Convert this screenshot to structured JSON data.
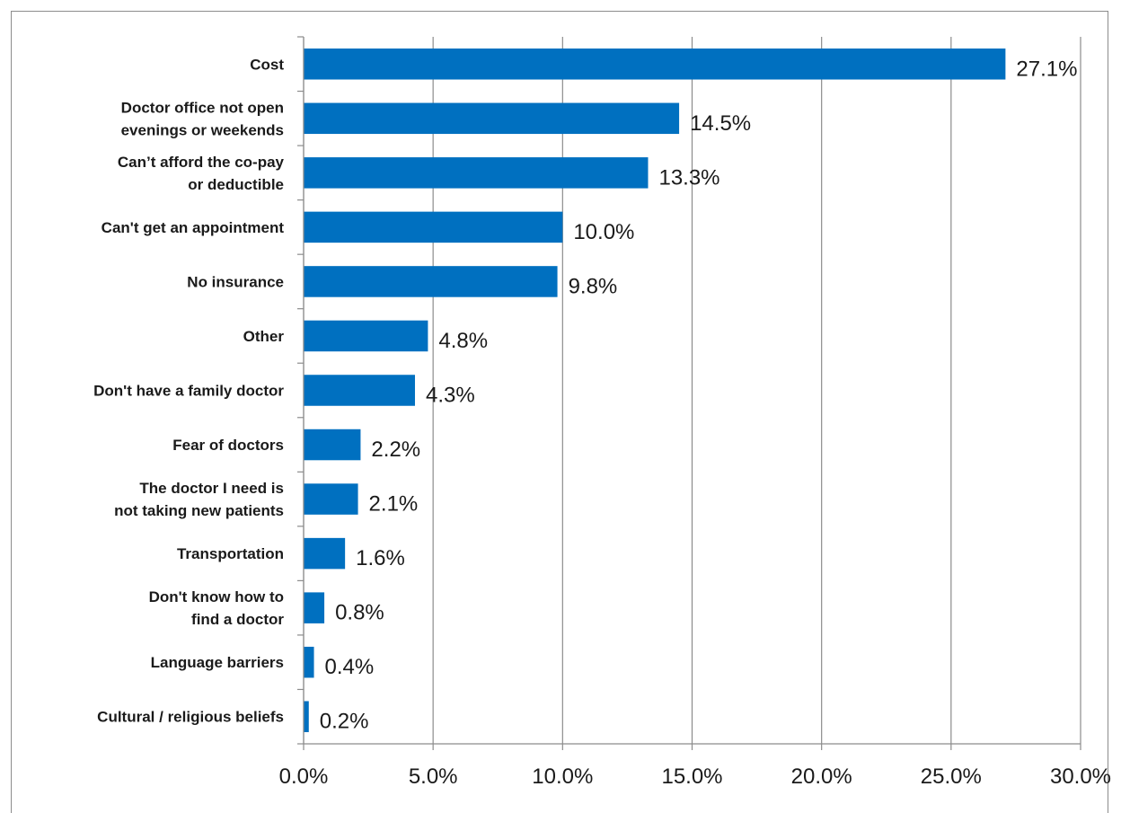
{
  "chart_data": {
    "type": "bar",
    "orientation": "horizontal",
    "title": "",
    "xlabel": "",
    "ylabel": "",
    "categories": [
      [
        "Cost"
      ],
      [
        "Doctor office not open",
        "evenings or weekends"
      ],
      [
        "Can’t afford the co-pay",
        "or deductible"
      ],
      [
        "Can't get an appointment"
      ],
      [
        "No insurance"
      ],
      [
        "Other"
      ],
      [
        "Don't have a family doctor"
      ],
      [
        "Fear of doctors"
      ],
      [
        "The doctor I need is",
        "not taking new patients"
      ],
      [
        "Transportation"
      ],
      [
        "Don't know how to",
        "find a doctor"
      ],
      [
        "Language barriers"
      ],
      [
        "Cultural / religious beliefs"
      ]
    ],
    "values": [
      27.1,
      14.5,
      13.3,
      10.0,
      9.8,
      4.8,
      4.3,
      2.2,
      2.1,
      1.6,
      0.8,
      0.4,
      0.2
    ],
    "value_labels": [
      "27.1%",
      "14.5%",
      "13.3%",
      "10.0%",
      "9.8%",
      "4.8%",
      "4.3%",
      "2.2%",
      "2.1%",
      "1.6%",
      "0.8%",
      "0.4%",
      "0.2%"
    ],
    "xlim": [
      0,
      30
    ],
    "xticks": [
      0,
      5,
      10,
      15,
      20,
      25,
      30
    ],
    "xtick_labels": [
      "0.0%",
      "5.0%",
      "10.0%",
      "15.0%",
      "20.0%",
      "25.0%",
      "30.0%"
    ],
    "grid": "vertical",
    "legend": "none",
    "colors": {
      "bar": "#0070c0",
      "grid": "#8c8c8c",
      "text": "#1a1a1a"
    }
  }
}
